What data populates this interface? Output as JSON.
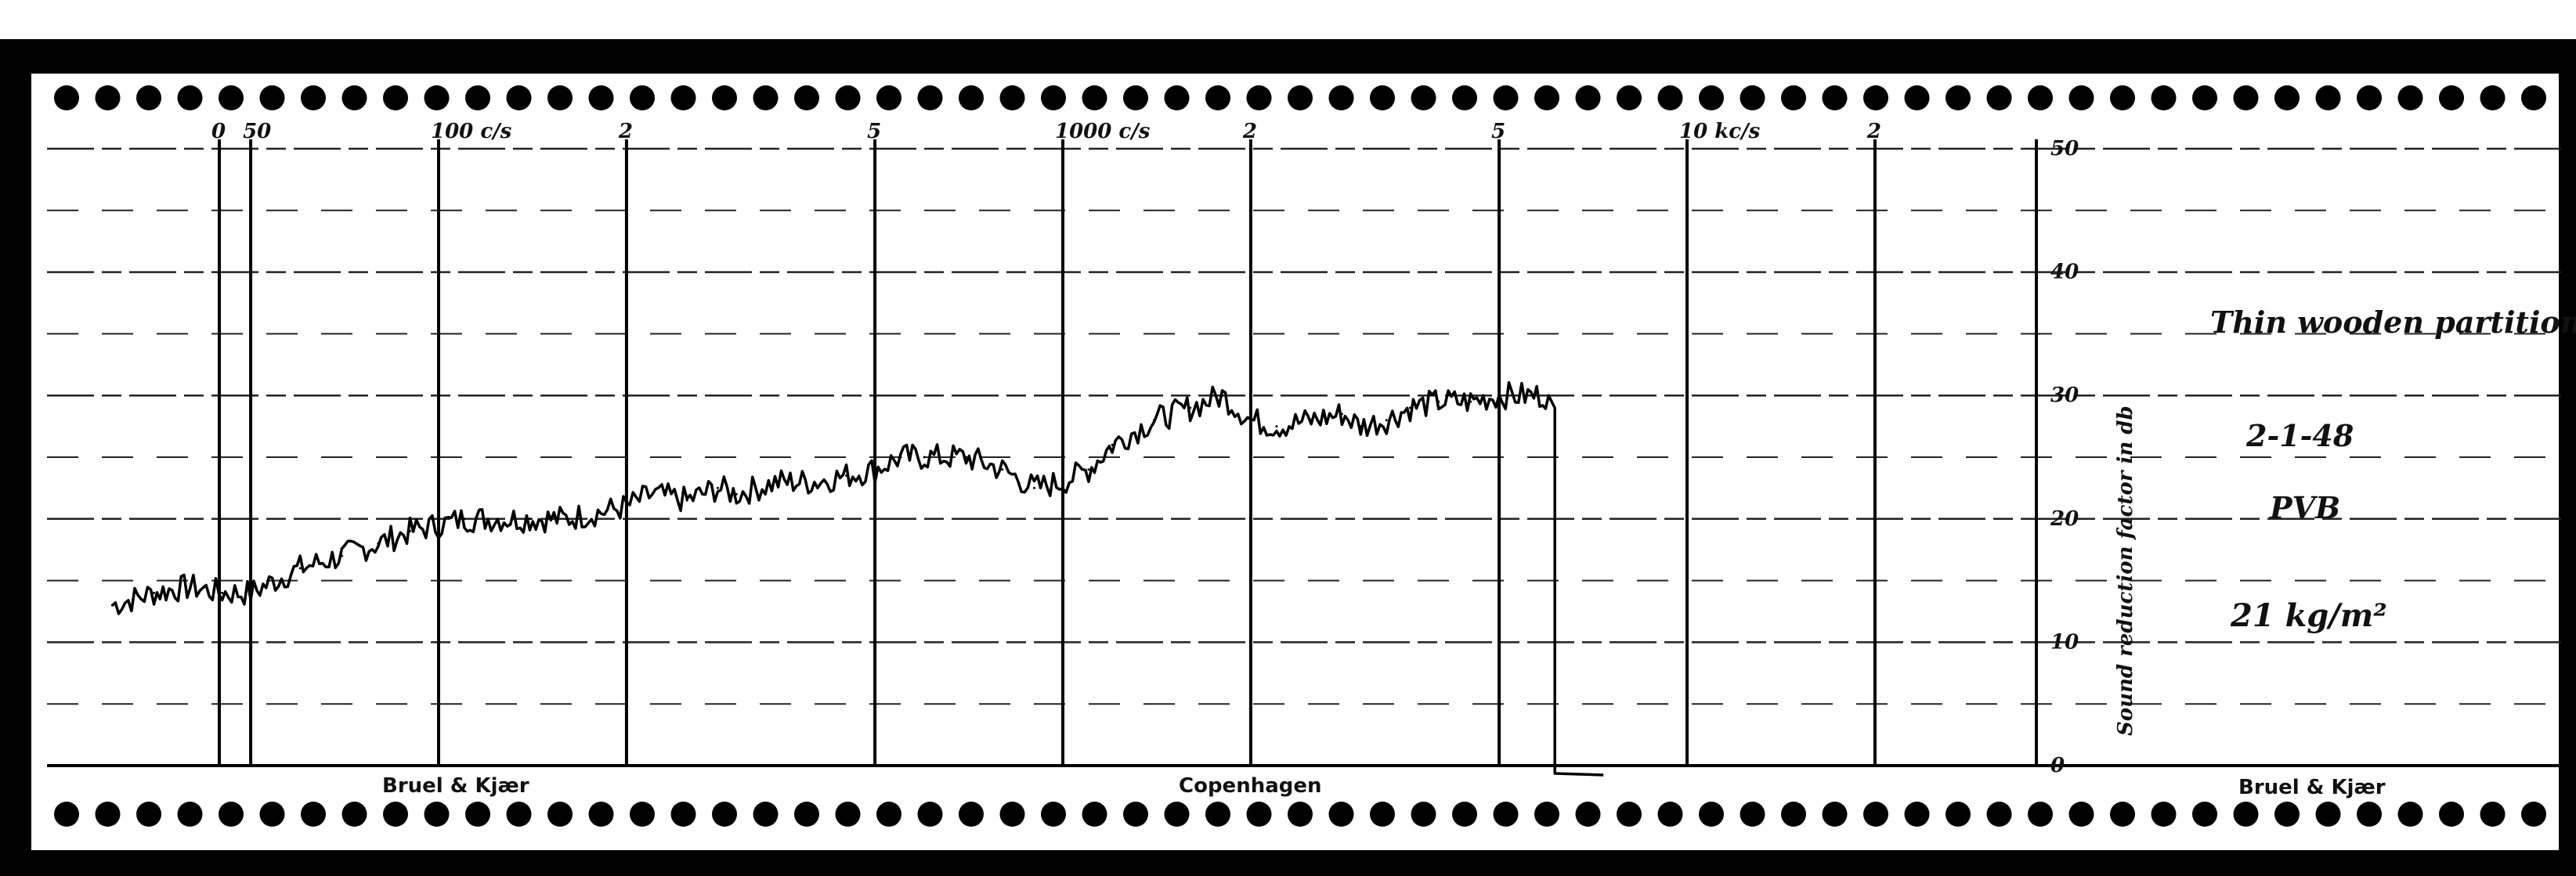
{
  "chart_data": {
    "type": "line",
    "title": "",
    "xlabel": "",
    "ylabel": "Sound reduction factor in db",
    "x_scale": "log",
    "x_ticks": [
      {
        "value": 0,
        "label": "0"
      },
      {
        "value": 50,
        "label": "50"
      },
      {
        "value": 100,
        "label": "100 c/s"
      },
      {
        "value": 200,
        "label": "2"
      },
      {
        "value": 500,
        "label": "5"
      },
      {
        "value": 1000,
        "label": "1000 c/s"
      },
      {
        "value": 2000,
        "label": "2"
      },
      {
        "value": 5000,
        "label": "5"
      },
      {
        "value": 10000,
        "label": "10 kc/s"
      },
      {
        "value": 20000,
        "label": "2"
      }
    ],
    "y_ticks": [
      "0",
      "10",
      "20",
      "30",
      "40",
      "50"
    ],
    "ylim": [
      0,
      50
    ],
    "annotations": [
      "Thin wooden partition",
      "2-1-48",
      "PVB",
      "21 kg/m²"
    ],
    "brand_labels": [
      "Bruel & Kjær",
      "Copenhagen",
      "Bruel & Kjær"
    ],
    "grid": true,
    "series": [
      {
        "x": [
          30,
          35,
          40,
          45,
          50,
          60,
          70,
          80,
          90,
          100,
          110,
          120,
          140,
          160,
          180,
          200,
          220,
          250,
          280,
          300,
          350,
          400,
          450,
          500,
          550,
          600,
          700,
          800,
          900,
          1000,
          1100,
          1200,
          1400,
          1600,
          1800,
          2000,
          2200,
          2500,
          2800,
          3000,
          3300,
          3600,
          4000,
          4500,
          5000,
          5500,
          6000
        ],
        "y": [
          13,
          14,
          14.5,
          14,
          14,
          16,
          17,
          18,
          19,
          19.5,
          20,
          20,
          20,
          20,
          20.5,
          21,
          22,
          21.5,
          22.5,
          22,
          23,
          23,
          23.5,
          24,
          25,
          25,
          25,
          24,
          22.5,
          23,
          24,
          26,
          28,
          29,
          30,
          28,
          27.5,
          28,
          28.5,
          27.5,
          28,
          29,
          29.5,
          29.5,
          30,
          30,
          30
        ]
      }
    ]
  }
}
